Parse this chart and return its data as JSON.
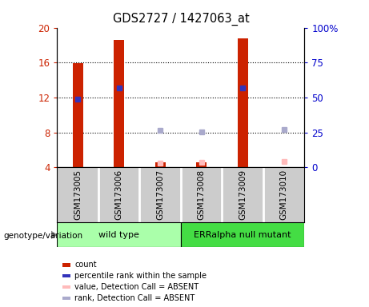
{
  "title": "GDS2727 / 1427063_at",
  "samples": [
    "GSM173005",
    "GSM173006",
    "GSM173007",
    "GSM173008",
    "GSM173009",
    "GSM173010"
  ],
  "bar_bottom": 4,
  "ylim": [
    4,
    20
  ],
  "ylim_right": [
    0,
    100
  ],
  "yticks_left": [
    4,
    8,
    12,
    16,
    20
  ],
  "yticks_right": [
    0,
    25,
    50,
    75,
    100
  ],
  "ytick_labels_left": [
    "4",
    "8",
    "12",
    "16",
    "20"
  ],
  "ytick_labels_right": [
    "0",
    "25",
    "50",
    "75",
    "100%"
  ],
  "red_bars": {
    "GSM173005": 15.9,
    "GSM173006": 18.55,
    "GSM173007": 4.55,
    "GSM173008": 4.55,
    "GSM173009": 18.75,
    "GSM173010": 4.0
  },
  "blue_markers": {
    "GSM173005": 11.85,
    "GSM173006": 13.1,
    "GSM173009": 13.1
  },
  "pink_markers": {
    "GSM173007": 4.5,
    "GSM173008": 4.55,
    "GSM173010": 4.65
  },
  "lightblue_markers": {
    "GSM173007": 8.25,
    "GSM173008": 8.1,
    "GSM173010": 8.35
  },
  "red_bar_color": "#cc2200",
  "blue_marker_color": "#3333bb",
  "pink_marker_color": "#ffbbbb",
  "lightblue_marker_color": "#aaaacc",
  "group_colors": {
    "wild type": "#aaffaa",
    "ERRalpha null mutant": "#44dd44"
  },
  "label_area_color": "#cccccc",
  "bar_width": 0.25,
  "marker_size": 5,
  "grid_color": "black",
  "background_color": "white",
  "genotype_label": "genotype/variation",
  "legend_items": [
    {
      "label": "count",
      "color": "#cc2200"
    },
    {
      "label": "percentile rank within the sample",
      "color": "#3333bb"
    },
    {
      "label": "value, Detection Call = ABSENT",
      "color": "#ffbbbb"
    },
    {
      "label": "rank, Detection Call = ABSENT",
      "color": "#aaaacc"
    }
  ]
}
